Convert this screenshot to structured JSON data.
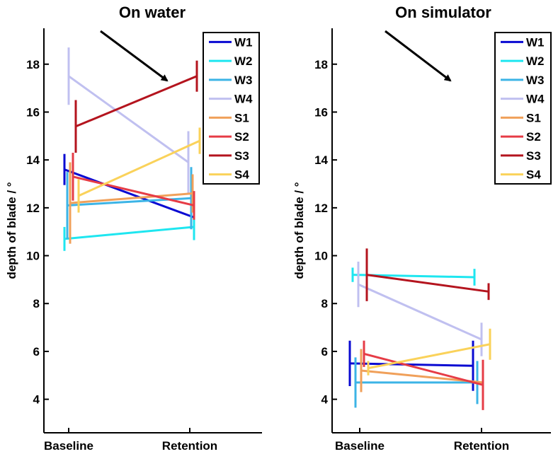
{
  "chart_data": [
    {
      "type": "line",
      "title": "On water",
      "ylabel": "depth of blade / °",
      "xlabel": "",
      "categories": [
        "Baseline",
        "Retention"
      ],
      "ylim": [
        2.6,
        19.5
      ],
      "yticks": [
        "4",
        "6",
        "8",
        "10",
        "12",
        "14",
        "16",
        "18"
      ],
      "legend_position": "top-right",
      "annotation": "arrow pointing down-right",
      "series": [
        {
          "name": "W1",
          "color": "#0a0ad2",
          "values": [
            13.6,
            11.6
          ],
          "errors": [
            0.65,
            0.65
          ]
        },
        {
          "name": "W2",
          "color": "#1ee6f0",
          "values": [
            10.7,
            11.2
          ],
          "errors": [
            0.5,
            0.55
          ]
        },
        {
          "name": "W3",
          "color": "#3cb4e6",
          "values": [
            12.1,
            12.4
          ],
          "errors": [
            1.4,
            1.3
          ]
        },
        {
          "name": "W4",
          "color": "#c0c0f0",
          "values": [
            17.5,
            13.9
          ],
          "errors": [
            1.2,
            1.3
          ]
        },
        {
          "name": "S1",
          "color": "#f0a05a",
          "values": [
            12.2,
            12.6
          ],
          "errors": [
            1.7,
            0.8
          ]
        },
        {
          "name": "S2",
          "color": "#e63c46",
          "values": [
            13.3,
            12.1
          ],
          "errors": [
            1.0,
            0.6
          ]
        },
        {
          "name": "S3",
          "color": "#b4141e",
          "values": [
            15.4,
            17.5
          ],
          "errors": [
            1.1,
            0.65
          ]
        },
        {
          "name": "S4",
          "color": "#fad25a",
          "values": [
            12.5,
            14.8
          ],
          "errors": [
            0.7,
            0.55
          ]
        }
      ]
    },
    {
      "type": "line",
      "title": "On simulator",
      "ylabel": "depth of blade / °",
      "xlabel": "",
      "categories": [
        "Baseline",
        "Retention"
      ],
      "ylim": [
        2.6,
        19.5
      ],
      "yticks": [
        "4",
        "6",
        "8",
        "10",
        "12",
        "14",
        "16",
        "18"
      ],
      "legend_position": "top-right",
      "annotation": "arrow pointing down-right",
      "series": [
        {
          "name": "W1",
          "color": "#0a0ad2",
          "values": [
            5.5,
            5.4
          ],
          "errors": [
            0.95,
            1.05
          ]
        },
        {
          "name": "W2",
          "color": "#1ee6f0",
          "values": [
            9.2,
            9.1
          ],
          "errors": [
            0.3,
            0.35
          ]
        },
        {
          "name": "W3",
          "color": "#3cb4e6",
          "values": [
            4.7,
            4.7
          ],
          "errors": [
            1.05,
            0.9
          ]
        },
        {
          "name": "W4",
          "color": "#c0c0f0",
          "values": [
            8.8,
            6.5
          ],
          "errors": [
            0.95,
            0.7
          ]
        },
        {
          "name": "S1",
          "color": "#f0a05a",
          "values": [
            5.2,
            4.7
          ],
          "errors": [
            0.9,
            0.4
          ]
        },
        {
          "name": "S2",
          "color": "#e63c46",
          "values": [
            5.9,
            4.6
          ],
          "errors": [
            0.55,
            1.05
          ]
        },
        {
          "name": "S3",
          "color": "#b4141e",
          "values": [
            9.2,
            8.5
          ],
          "errors": [
            1.1,
            0.35
          ]
        },
        {
          "name": "S4",
          "color": "#fad25a",
          "values": [
            5.3,
            6.3
          ],
          "errors": [
            0.3,
            0.65
          ]
        }
      ]
    }
  ]
}
